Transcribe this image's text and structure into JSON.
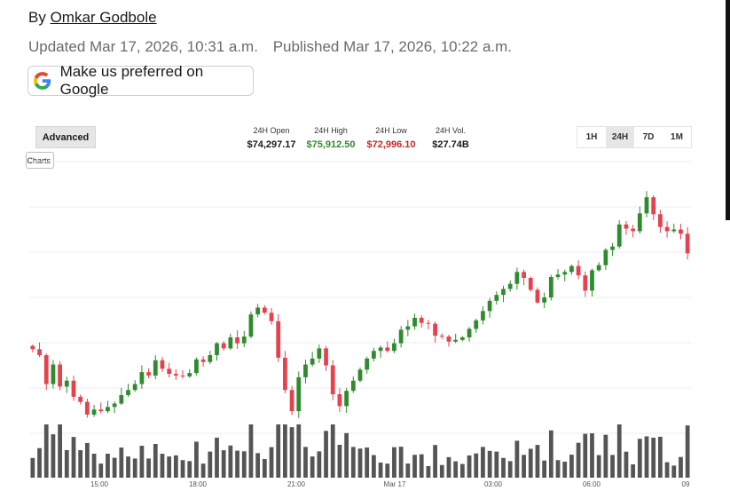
{
  "article": {
    "by_prefix": "By",
    "author": "Omkar Godbole",
    "updated": "Updated Mar 17, 2026, 10:31 a.m.",
    "published": "Published Mar 17, 2026, 10:22 a.m."
  },
  "google_button": {
    "label": "Make us preferred on Google"
  },
  "toolbar": {
    "advanced_label": "Advanced",
    "charts_label": "Charts",
    "ranges": [
      "1H",
      "24H",
      "7D",
      "1M"
    ],
    "active_range": "24H"
  },
  "stats": {
    "open_label": "24H Open",
    "open_value": "$74,297.17",
    "high_label": "24H High",
    "high_value": "$75,912.50",
    "low_label": "24H Low",
    "low_value": "$72,996.10",
    "vol_label": "24H Vol.",
    "vol_value": "$27.74B"
  },
  "colors": {
    "up": "#2e8b2e",
    "down": "#e5424d",
    "high": "#2e8b2e",
    "low": "#c62828",
    "volume": "#555555"
  },
  "chart_data": {
    "type": "candlestick",
    "x_tick_labels": [
      "15:00",
      "18:00",
      "21:00",
      "Mar 17",
      "03:00",
      "06:00",
      "09"
    ],
    "ylim": [
      72800,
      76000
    ],
    "close": [
      73790,
      73720,
      73380,
      73610,
      73350,
      73420,
      73230,
      73170,
      73020,
      73080,
      73060,
      73110,
      73150,
      73250,
      73310,
      73380,
      73520,
      73480,
      73660,
      73560,
      73500,
      73480,
      73470,
      73510,
      73670,
      73640,
      73720,
      73860,
      73800,
      73930,
      73860,
      73940,
      74200,
      74280,
      74220,
      74120,
      73690,
      73310,
      73060,
      73460,
      73610,
      73680,
      73800,
      73600,
      73260,
      73120,
      73300,
      73420,
      73550,
      73680,
      73770,
      73810,
      73770,
      73860,
      74020,
      74060,
      74160,
      74100,
      74090,
      73950,
      73940,
      73880,
      73900,
      73930,
      74030,
      74130,
      74240,
      74360,
      74430,
      74500,
      74560,
      74700,
      74630,
      74490,
      74340,
      74400,
      74640,
      74670,
      74700,
      74770,
      74660,
      74480,
      74720,
      74780,
      74960,
      75000,
      75260,
      75210,
      75180,
      75390,
      75580,
      75380,
      75230,
      75180,
      75200,
      75150,
      74920
    ]
  }
}
